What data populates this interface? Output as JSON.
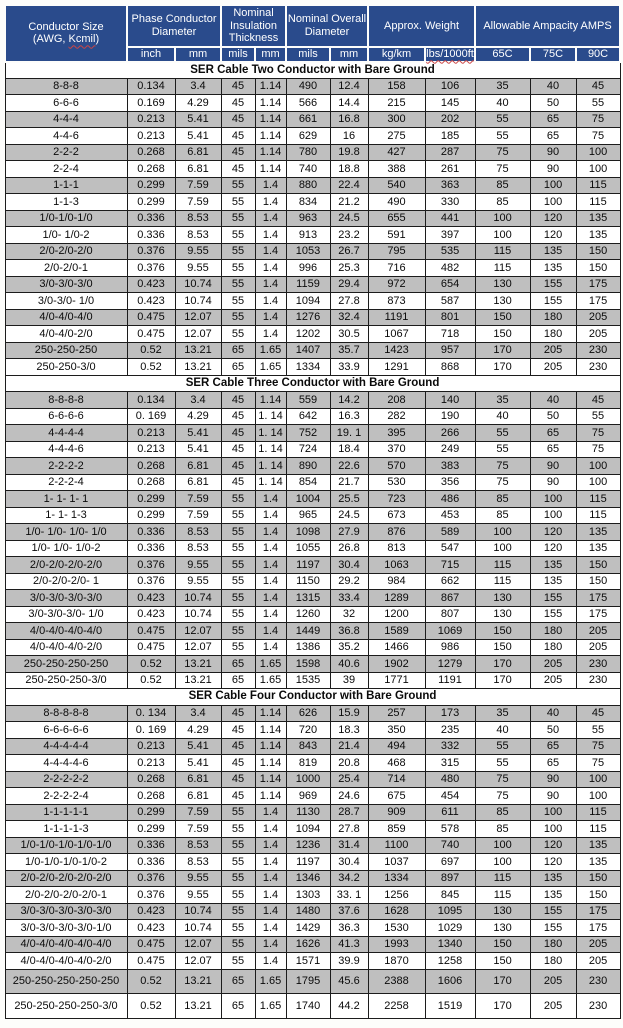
{
  "colors": {
    "header_bg": "#2a4b8c",
    "header_text": "#ffffff",
    "row_stripe": "#bfbfbf",
    "grid_line": "#1c1c1c",
    "spellcheck_underline": "#cc4444"
  },
  "header": {
    "conductor_size_line1": "Conductor Size",
    "conductor_size_line2_prefix": "(AWG, ",
    "conductor_size_kcmil": "Kcmil",
    "conductor_size_line2_suffix": ")",
    "groups": [
      {
        "label": "Phase Conductor Diameter",
        "units": [
          "inch",
          "mm"
        ]
      },
      {
        "label": "Nominal Insulation Thickness",
        "units": [
          "mils",
          "mm"
        ]
      },
      {
        "label": "Nominal Overall Diameter",
        "units": [
          "mils",
          "mm"
        ]
      },
      {
        "label": "Approx. Weight",
        "units": [
          "kg/km",
          "lbs/1000ft"
        ]
      },
      {
        "label": "Allowable Ampacity AMPS",
        "units": [
          "65C",
          "75C",
          "90C"
        ]
      }
    ]
  },
  "sections": [
    {
      "title": "SER Cable Two Conductor with Bare Ground",
      "rows": [
        [
          "8-8-8",
          "0.134",
          "3.4",
          "45",
          "1.14",
          "490",
          "12.4",
          "158",
          "106",
          "35",
          "40",
          "45"
        ],
        [
          "6-6-6",
          "0.169",
          "4.29",
          "45",
          "1.14",
          "566",
          "14.4",
          "215",
          "145",
          "40",
          "50",
          "55"
        ],
        [
          "4-4-4",
          "0.213",
          "5.41",
          "45",
          "1.14",
          "661",
          "16.8",
          "300",
          "202",
          "55",
          "65",
          "75"
        ],
        [
          "4-4-6",
          "0.213",
          "5.41",
          "45",
          "1.14",
          "629",
          "16",
          "275",
          "185",
          "55",
          "65",
          "75"
        ],
        [
          "2-2-2",
          "0.268",
          "6.81",
          "45",
          "1.14",
          "780",
          "19.8",
          "427",
          "287",
          "75",
          "90",
          "100"
        ],
        [
          "2-2-4",
          "0.268",
          "6.81",
          "45",
          "1.14",
          "740",
          "18.8",
          "388",
          "261",
          "75",
          "90",
          "100"
        ],
        [
          "1-1-1",
          "0.299",
          "7.59",
          "55",
          "1.4",
          "880",
          "22.4",
          "540",
          "363",
          "85",
          "100",
          "115"
        ],
        [
          "1-1-3",
          "0.299",
          "7.59",
          "55",
          "1.4",
          "834",
          "21.2",
          "490",
          "330",
          "85",
          "100",
          "115"
        ],
        [
          "1/0-1/0-1/0",
          "0.336",
          "8.53",
          "55",
          "1.4",
          "963",
          "24.5",
          "655",
          "441",
          "100",
          "120",
          "135"
        ],
        [
          "1/0- 1/0-2",
          "0.336",
          "8.53",
          "55",
          "1.4",
          "913",
          "23.2",
          "591",
          "397",
          "100",
          "120",
          "135"
        ],
        [
          "2/0-2/0-2/0",
          "0.376",
          "9.55",
          "55",
          "1.4",
          "1053",
          "26.7",
          "795",
          "535",
          "115",
          "135",
          "150"
        ],
        [
          "2/0-2/0-1",
          "0.376",
          "9.55",
          "55",
          "1.4",
          "996",
          "25.3",
          "716",
          "482",
          "115",
          "135",
          "150"
        ],
        [
          "3/0-3/0-3/0",
          "0.423",
          "10.74",
          "55",
          "1.4",
          "1159",
          "29.4",
          "972",
          "654",
          "130",
          "155",
          "175"
        ],
        [
          "3/0-3/0- 1/0",
          "0.423",
          "10.74",
          "55",
          "1.4",
          "1094",
          "27.8",
          "873",
          "587",
          "130",
          "155",
          "175"
        ],
        [
          "4/0-4/0-4/0",
          "0.475",
          "12.07",
          "55",
          "1.4",
          "1276",
          "32.4",
          "1191",
          "801",
          "150",
          "180",
          "205"
        ],
        [
          "4/0-4/0-2/0",
          "0.475",
          "12.07",
          "55",
          "1.4",
          "1202",
          "30.5",
          "1067",
          "718",
          "150",
          "180",
          "205"
        ],
        [
          "250-250-250",
          "0.52",
          "13.21",
          "65",
          "1.65",
          "1407",
          "35.7",
          "1423",
          "957",
          "170",
          "205",
          "230"
        ],
        [
          "250-250-3/0",
          "0.52",
          "13.21",
          "65",
          "1.65",
          "1334",
          "33.9",
          "1291",
          "868",
          "170",
          "205",
          "230"
        ]
      ]
    },
    {
      "title": "SER Cable Three Conductor with Bare Ground",
      "rows": [
        [
          "8-8-8-8",
          "0.134",
          "3.4",
          "45",
          "1.14",
          "559",
          "14.2",
          "208",
          "140",
          "35",
          "40",
          "45"
        ],
        [
          "6-6-6-6",
          "0. 169",
          "4.29",
          "45",
          "1. 14",
          "642",
          "16.3",
          "282",
          "190",
          "40",
          "50",
          "55"
        ],
        [
          "4-4-4-4",
          "0.213",
          "5.41",
          "45",
          "1. 14",
          "752",
          "19. 1",
          "395",
          "266",
          "55",
          "65",
          "75"
        ],
        [
          "4-4-4-6",
          "0.213",
          "5.41",
          "45",
          "1. 14",
          "724",
          "18.4",
          "370",
          "249",
          "55",
          "65",
          "75"
        ],
        [
          "2-2-2-2",
          "0.268",
          "6.81",
          "45",
          "1. 14",
          "890",
          "22.6",
          "570",
          "383",
          "75",
          "90",
          "100"
        ],
        [
          "2-2-2-4",
          "0.268",
          "6.81",
          "45",
          "1. 14",
          "854",
          "21.7",
          "530",
          "356",
          "75",
          "90",
          "100"
        ],
        [
          "1- 1- 1- 1",
          "0.299",
          "7.59",
          "55",
          "1.4",
          "1004",
          "25.5",
          "723",
          "486",
          "85",
          "100",
          "115"
        ],
        [
          "1- 1- 1-3",
          "0.299",
          "7.59",
          "55",
          "1.4",
          "965",
          "24.5",
          "673",
          "453",
          "85",
          "100",
          "115"
        ],
        [
          "1/0- 1/0- 1/0- 1/0",
          "0.336",
          "8.53",
          "55",
          "1.4",
          "1098",
          "27.9",
          "876",
          "589",
          "100",
          "120",
          "135"
        ],
        [
          "1/0- 1/0- 1/0-2",
          "0.336",
          "8.53",
          "55",
          "1.4",
          "1055",
          "26.8",
          "813",
          "547",
          "100",
          "120",
          "135"
        ],
        [
          "2/0-2/0-2/0-2/0",
          "0.376",
          "9.55",
          "55",
          "1.4",
          "1197",
          "30.4",
          "1063",
          "715",
          "115",
          "135",
          "150"
        ],
        [
          "2/0-2/0-2/0- 1",
          "0.376",
          "9.55",
          "55",
          "1.4",
          "1150",
          "29.2",
          "984",
          "662",
          "115",
          "135",
          "150"
        ],
        [
          "3/0-3/0-3/0-3/0",
          "0.423",
          "10.74",
          "55",
          "1.4",
          "1315",
          "33.4",
          "1289",
          "867",
          "130",
          "155",
          "175"
        ],
        [
          "3/0-3/0-3/0- 1/0",
          "0.423",
          "10.74",
          "55",
          "1.4",
          "1260",
          "32",
          "1200",
          "807",
          "130",
          "155",
          "175"
        ],
        [
          "4/0-4/0-4/0-4/0",
          "0.475",
          "12.07",
          "55",
          "1.4",
          "1449",
          "36.8",
          "1589",
          "1069",
          "150",
          "180",
          "205"
        ],
        [
          "4/0-4/0-4/0-2/0",
          "0.475",
          "12.07",
          "55",
          "1.4",
          "1386",
          "35.2",
          "1466",
          "986",
          "150",
          "180",
          "205"
        ],
        [
          "250-250-250-250",
          "0.52",
          "13.21",
          "65",
          "1.65",
          "1598",
          "40.6",
          "1902",
          "1279",
          "170",
          "205",
          "230"
        ],
        [
          "250-250-250-3/0",
          "0.52",
          "13.21",
          "65",
          "1.65",
          "1535",
          "39",
          "1771",
          "1191",
          "170",
          "205",
          "230"
        ]
      ]
    },
    {
      "title": "SER Cable Four Conductor with Bare Ground",
      "rows": [
        [
          "8-8-8-8-8",
          "0. 134",
          "3.4",
          "45",
          "1.14",
          "626",
          "15.9",
          "257",
          "173",
          "35",
          "40",
          "45"
        ],
        [
          "6-6-6-6-6",
          "0. 169",
          "4.29",
          "45",
          "1.14",
          "720",
          "18.3",
          "350",
          "235",
          "40",
          "50",
          "55"
        ],
        [
          "4-4-4-4-4",
          "0.213",
          "5.41",
          "45",
          "1.14",
          "843",
          "21.4",
          "494",
          "332",
          "55",
          "65",
          "75"
        ],
        [
          "4-4-4-4-6",
          "0.213",
          "5.41",
          "45",
          "1.14",
          "819",
          "20.8",
          "468",
          "315",
          "55",
          "65",
          "75"
        ],
        [
          "2-2-2-2-2",
          "0.268",
          "6.81",
          "45",
          "1.14",
          "1000",
          "25.4",
          "714",
          "480",
          "75",
          "90",
          "100"
        ],
        [
          "2-2-2-2-4",
          "0.268",
          "6.81",
          "45",
          "1.14",
          "969",
          "24.6",
          "675",
          "454",
          "75",
          "90",
          "100"
        ],
        [
          "1-1-1-1-1",
          "0.299",
          "7.59",
          "55",
          "1.4",
          "1130",
          "28.7",
          "909",
          "611",
          "85",
          "100",
          "115"
        ],
        [
          "1-1-1-1-3",
          "0.299",
          "7.59",
          "55",
          "1.4",
          "1094",
          "27.8",
          "859",
          "578",
          "85",
          "100",
          "115"
        ],
        [
          "1/0-1/0-1/0-1/0-1/0",
          "0.336",
          "8.53",
          "55",
          "1.4",
          "1236",
          "31.4",
          "1100",
          "740",
          "100",
          "120",
          "135"
        ],
        [
          "1/0-1/0-1/0-1/0-2",
          "0.336",
          "8.53",
          "55",
          "1.4",
          "1197",
          "30.4",
          "1037",
          "697",
          "100",
          "120",
          "135"
        ],
        [
          "2/0-2/0-2/0-2/0-2/0",
          "0.376",
          "9.55",
          "55",
          "1.4",
          "1346",
          "34.2",
          "1334",
          "897",
          "115",
          "135",
          "150"
        ],
        [
          "2/0-2/0-2/0-2/0-1",
          "0.376",
          "9.55",
          "55",
          "1.4",
          "1303",
          "33. 1",
          "1256",
          "845",
          "115",
          "135",
          "150"
        ],
        [
          "3/0-3/0-3/0-3/0-3/0",
          "0.423",
          "10.74",
          "55",
          "1.4",
          "1480",
          "37.6",
          "1628",
          "1095",
          "130",
          "155",
          "175"
        ],
        [
          "3/0-3/0-3/0-3/0-1/0",
          "0.423",
          "10.74",
          "55",
          "1.4",
          "1429",
          "36.3",
          "1530",
          "1029",
          "130",
          "155",
          "175"
        ],
        [
          "4/0-4/0-4/0-4/0-4/0",
          "0.475",
          "12.07",
          "55",
          "1.4",
          "1626",
          "41.3",
          "1993",
          "1340",
          "150",
          "180",
          "205"
        ],
        [
          "4/0-4/0-4/0-4/0-2/0",
          "0.475",
          "12.07",
          "55",
          "1.4",
          "1571",
          "39.9",
          "1870",
          "1258",
          "150",
          "180",
          "205"
        ],
        [
          "250-250-250-250-250",
          "0.52",
          "13.21",
          "65",
          "1.65",
          "1795",
          "45.6",
          "2388",
          "1606",
          "170",
          "205",
          "230"
        ],
        [
          "250-250-250-250-3/0",
          "0.52",
          "13.21",
          "65",
          "1.65",
          "1740",
          "44.2",
          "2258",
          "1519",
          "170",
          "205",
          "230"
        ]
      ]
    }
  ]
}
